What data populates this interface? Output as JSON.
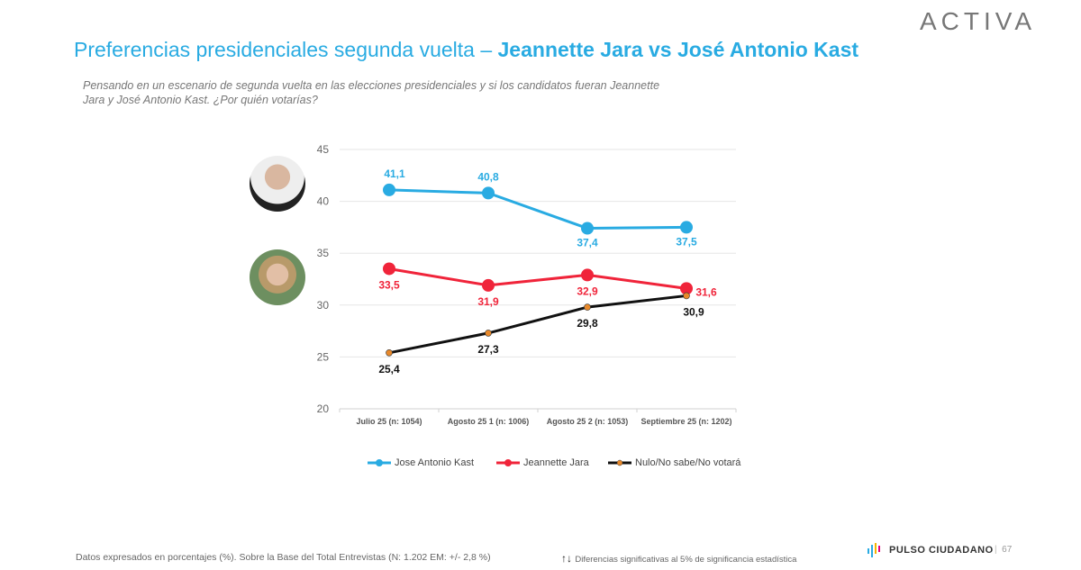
{
  "header": {
    "title_part1": "Preferencias presidenciales segunda vuelta – ",
    "title_part2": "Jeannette Jara vs José Antonio Kast",
    "logo": "ACTIVA",
    "question": "Pensando en un escenario de segunda vuelta en las elecciones presidenciales y si los candidatos fueran Jeannette Jara y José Antonio Kast. ¿Por quién votarías?"
  },
  "chart_data": {
    "type": "line",
    "categories": [
      "Julio 25 (n: 1054)",
      "Agosto 25 1 (n: 1006)",
      "Agosto 25 2 (n: 1053)",
      "Septiembre 25 (n: 1202)"
    ],
    "ylim": [
      20,
      45
    ],
    "yticks": [
      20,
      25,
      30,
      35,
      40,
      45
    ],
    "grid": true,
    "legend_position": "bottom",
    "series": [
      {
        "name": "Jose Antonio Kast",
        "values": [
          41.1,
          40.8,
          37.4,
          37.5
        ],
        "labels": [
          "41,1",
          "40,8",
          "37,4",
          "37,5"
        ],
        "color": "#29abe2"
      },
      {
        "name": "Jeannette Jara",
        "values": [
          33.5,
          31.9,
          32.9,
          31.6
        ],
        "labels": [
          "33,5",
          "31,9",
          "32,9",
          "31,6"
        ],
        "color": "#f0243a"
      },
      {
        "name": "Nulo/No sabe/No votará",
        "values": [
          25.4,
          27.3,
          29.8,
          30.9
        ],
        "labels": [
          "25,4",
          "27,3",
          "29,8",
          "30,9"
        ],
        "color": "#111111",
        "marker_color": "#e8892b"
      }
    ]
  },
  "footer": {
    "note": "Datos expresados en porcentajes (%). Sobre la Base del Total Entrevistas (N: 1.202  EM: +/- 2,8 %)",
    "significance": "Diferencias  significativas  al 5% de significancia estadística",
    "brand": "PULSO CIUDADANO",
    "page": "67"
  }
}
